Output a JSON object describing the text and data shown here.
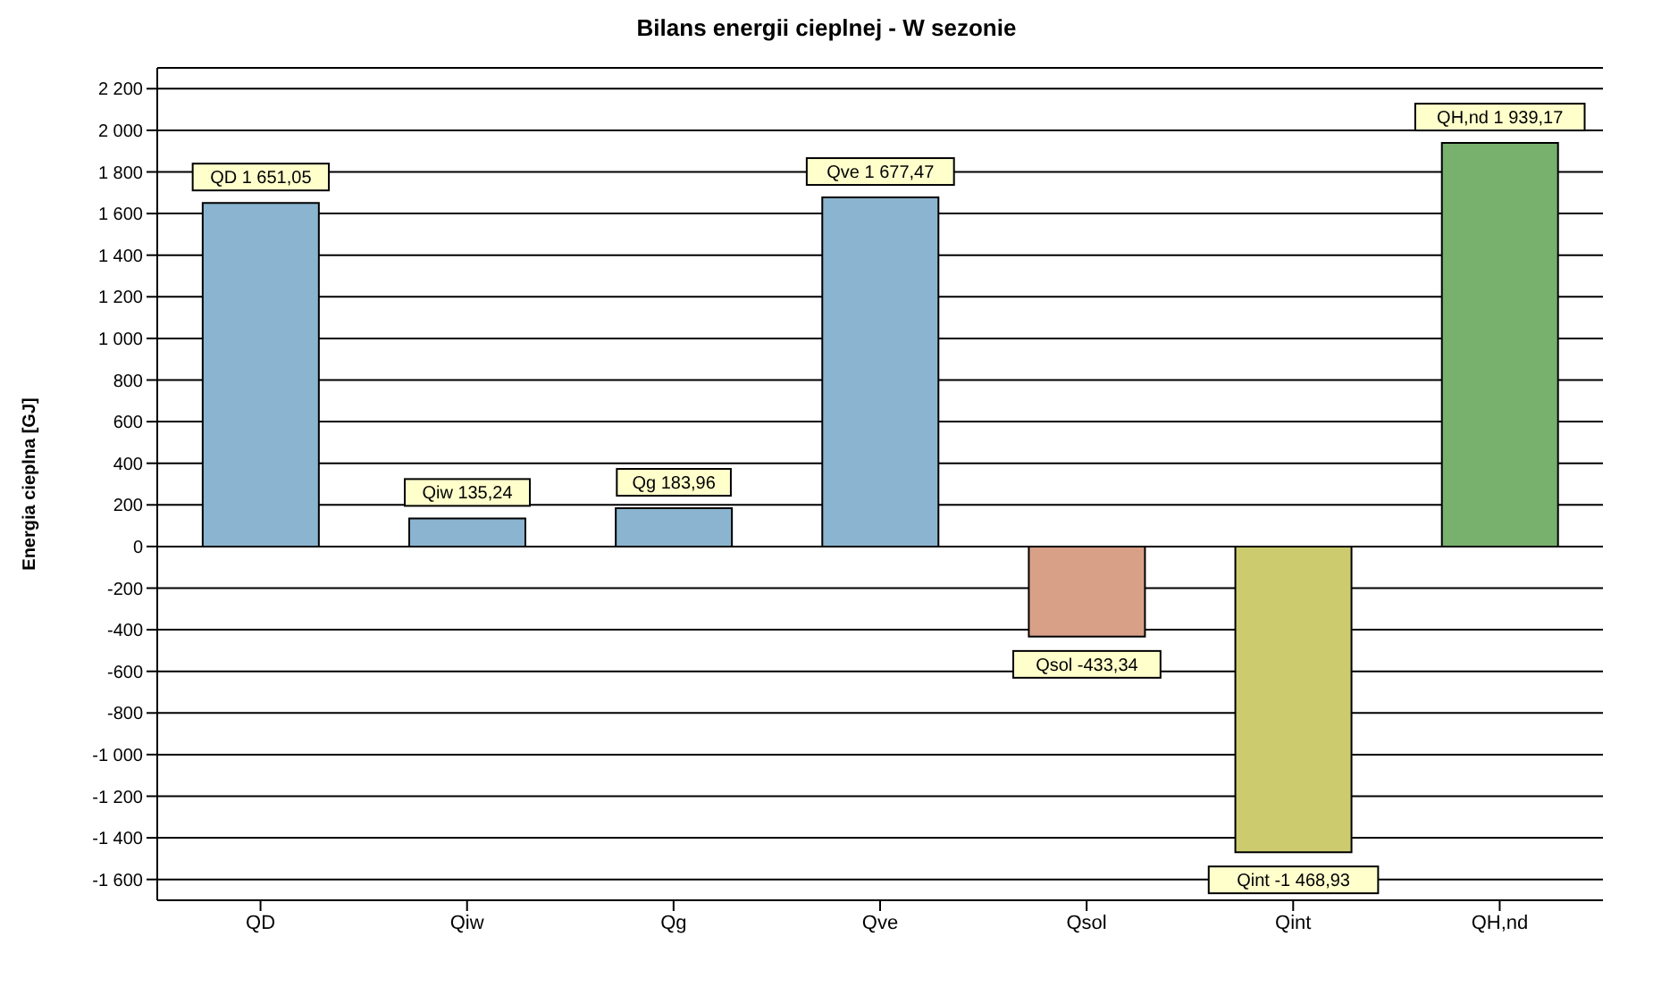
{
  "chart_data": {
    "type": "bar",
    "title": "Bilans energii cieplnej - W sezonie",
    "ylabel": "Energia cieplna [GJ]",
    "categories": [
      "QD",
      "Qiw",
      "Qg",
      "Qve",
      "Qsol",
      "Qint",
      "QH,nd"
    ],
    "values": [
      1651.05,
      135.24,
      183.96,
      1677.47,
      -433.34,
      -1468.93,
      1939.17
    ],
    "colors": [
      "#8ab4cf",
      "#8ab4cf",
      "#8ab4cf",
      "#8ab4cf",
      "#d9a088",
      "#cccc6e",
      "#78b06e"
    ],
    "value_labels": [
      "QD 1 651,05",
      "Qiw 135,24",
      "Qg 183,96",
      "Qve 1 677,47",
      "Qsol -433,34",
      "Qint -1 468,93",
      "QH,nd 1 939,17"
    ],
    "ylim": [
      -1700,
      2300
    ],
    "yticks": [
      {
        "value": -1600,
        "label": "-1 600"
      },
      {
        "value": -1400,
        "label": "-1 400"
      },
      {
        "value": -1200,
        "label": "-1 200"
      },
      {
        "value": -1000,
        "label": "-1 000"
      },
      -800,
      -600,
      -400,
      -200,
      0,
      200,
      400,
      600,
      800,
      {
        "value": 1000,
        "label": "1 000"
      },
      {
        "value": 1200,
        "label": "1 200"
      },
      {
        "value": 1400,
        "label": "1 400"
      },
      {
        "value": 1600,
        "label": "1 600"
      },
      {
        "value": 1800,
        "label": "1 800"
      },
      {
        "value": 2000,
        "label": "2 000"
      },
      {
        "value": 2200,
        "label": "2 200"
      }
    ],
    "grid": "y"
  }
}
